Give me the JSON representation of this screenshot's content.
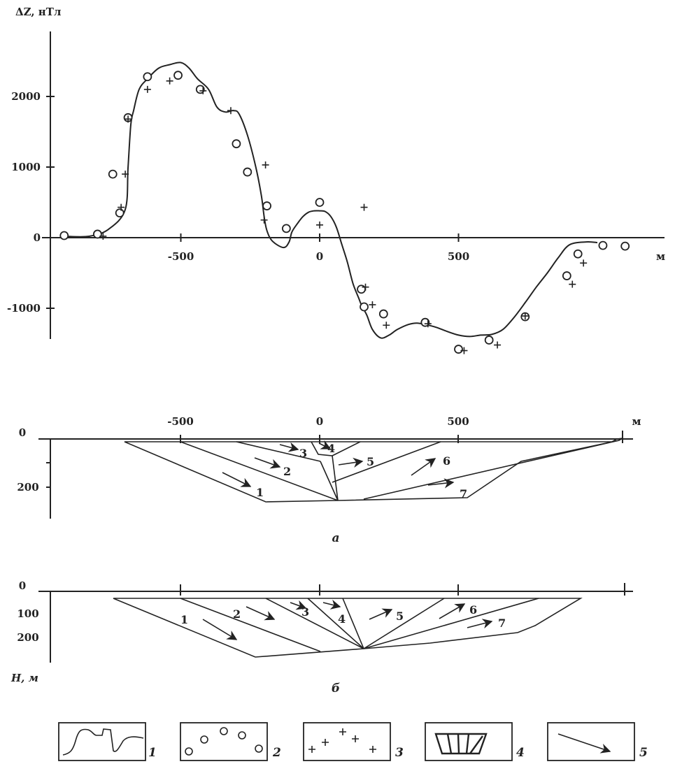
{
  "chart_data": [
    {
      "type": "line",
      "ylabel": "ΔZ, нТл",
      "xunit": "м",
      "xlim": [
        -920,
        1000
      ],
      "ylim": [
        -1450,
        2900
      ],
      "xticks": [
        "-500",
        "0",
        "500"
      ],
      "xtick_values": [
        -500,
        0,
        500
      ],
      "yticks": [
        "2000",
        "1000",
        "0",
        "-1000"
      ],
      "ytick_values": [
        2000,
        1000,
        0,
        -1000
      ],
      "series": [
        {
          "style": "line",
          "x": [
            -920,
            -830,
            -760,
            -700,
            -690,
            -680,
            -670,
            -650,
            -620,
            -580,
            -540,
            -500,
            -470,
            -440,
            -400,
            -370,
            -340,
            -310,
            -290,
            -260,
            -230,
            -210,
            -200,
            -190,
            -170,
            -130,
            -110,
            -100,
            -80,
            -60,
            -40,
            -20,
            0,
            20,
            40,
            60,
            80,
            100,
            120,
            140,
            150,
            170,
            190,
            220,
            250,
            280,
            320,
            350,
            380,
            420,
            460,
            500,
            540,
            580,
            620,
            660,
            700,
            740,
            780,
            820,
            860,
            900,
            960,
            1000
          ],
          "y": [
            20,
            20,
            120,
            400,
            1000,
            1600,
            1800,
            2100,
            2250,
            2400,
            2450,
            2480,
            2400,
            2250,
            2100,
            1850,
            1780,
            1800,
            1750,
            1450,
            1000,
            600,
            300,
            100,
            -50,
            -140,
            -60,
            80,
            200,
            300,
            360,
            380,
            380,
            370,
            300,
            150,
            -100,
            -350,
            -650,
            -850,
            -950,
            -1100,
            -1300,
            -1420,
            -1380,
            -1300,
            -1230,
            -1210,
            -1230,
            -1270,
            -1330,
            -1380,
            -1400,
            -1380,
            -1370,
            -1300,
            -1130,
            -920,
            -700,
            -500,
            -280,
            -100,
            -60,
            -70
          ]
        },
        {
          "style": "circle",
          "x": [
            -920,
            -800,
            -745,
            -720,
            -690,
            -620,
            -510,
            -430,
            -300,
            -260,
            -190,
            -120,
            0,
            150,
            160,
            230,
            380,
            500,
            610,
            740,
            890,
            930,
            1020,
            1100
          ],
          "y": [
            30,
            50,
            900,
            350,
            1700,
            2280,
            2300,
            2100,
            1330,
            930,
            450,
            130,
            500,
            -730,
            -980,
            -1080,
            -1200,
            -1580,
            -1450,
            -1120,
            -540,
            -230,
            -110,
            -120
          ]
        },
        {
          "style": "plus",
          "x": [
            -780,
            -715,
            -700,
            -690,
            -620,
            -540,
            -420,
            -320,
            -195,
            -200,
            0,
            160,
            165,
            190,
            240,
            390,
            520,
            640,
            740,
            910,
            950
          ],
          "y": [
            20,
            430,
            900,
            1680,
            2100,
            2220,
            2080,
            1800,
            1030,
            250,
            180,
            430,
            -700,
            -950,
            -1240,
            -1220,
            -1600,
            -1520,
            -1110,
            -660,
            -360
          ]
        }
      ]
    },
    {
      "type": "table",
      "panel_label": "а",
      "xunit": "м",
      "xticks": [
        "-500",
        "0",
        "500"
      ],
      "xtick_values": [
        -500,
        0,
        500
      ],
      "yticks": [
        "0",
        "200"
      ],
      "ytick_values": [
        0,
        200
      ],
      "block_labels": [
        "1",
        "2",
        "3",
        "4",
        "5",
        "6",
        "7"
      ]
    },
    {
      "type": "table",
      "panel_label": "б",
      "ylabel": "H, м",
      "yticks": [
        "0",
        "100",
        "200"
      ],
      "ytick_values": [
        0,
        100,
        200
      ],
      "block_labels": [
        "1",
        "2",
        "3",
        "4",
        "5",
        "6",
        "7"
      ]
    }
  ],
  "legend": [
    {
      "icon": "curve-icon",
      "label": "1"
    },
    {
      "icon": "circles-icon",
      "label": "2"
    },
    {
      "icon": "plus-icon",
      "label": "3"
    },
    {
      "icon": "blocks-icon",
      "label": "4"
    },
    {
      "icon": "arrow-icon",
      "label": "5"
    }
  ]
}
